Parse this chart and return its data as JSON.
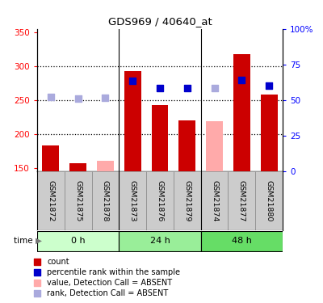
{
  "title": "GDS969 / 40640_at",
  "samples": [
    "GSM21872",
    "GSM21875",
    "GSM21878",
    "GSM21873",
    "GSM21876",
    "GSM21879",
    "GSM21874",
    "GSM21877",
    "GSM21880"
  ],
  "group_labels": [
    "0 h",
    "24 h",
    "48 h"
  ],
  "group_colors": [
    "#ccffcc",
    "#99ee99",
    "#66dd66"
  ],
  "bar_values": [
    183,
    157,
    null,
    292,
    242,
    220,
    null,
    318,
    258
  ],
  "bar_absent_values": [
    null,
    null,
    160,
    null,
    null,
    null,
    219,
    null,
    null
  ],
  "rank_values": [
    null,
    null,
    null,
    278,
    267,
    267,
    null,
    280,
    271
  ],
  "rank_absent_values": [
    254,
    252,
    253,
    null,
    null,
    null,
    268,
    null,
    null
  ],
  "ylim_left": [
    145,
    355
  ],
  "ylim_right": [
    0,
    100
  ],
  "yticks_left": [
    150,
    200,
    250,
    300,
    350
  ],
  "yticks_right": [
    0,
    25,
    50,
    75,
    100
  ],
  "bar_color": "#cc0000",
  "bar_absent_color": "#ffaaaa",
  "rank_color": "#0000cc",
  "rank_absent_color": "#aaaadd",
  "dotted_line_values": [
    200,
    250,
    300
  ],
  "legend_items": [
    {
      "color": "#cc0000",
      "label": "count",
      "marker": "s"
    },
    {
      "color": "#0000cc",
      "label": "percentile rank within the sample",
      "marker": "s"
    },
    {
      "color": "#ffaaaa",
      "label": "value, Detection Call = ABSENT",
      "marker": "s"
    },
    {
      "color": "#aaaadd",
      "label": "rank, Detection Call = ABSENT",
      "marker": "s"
    }
  ]
}
